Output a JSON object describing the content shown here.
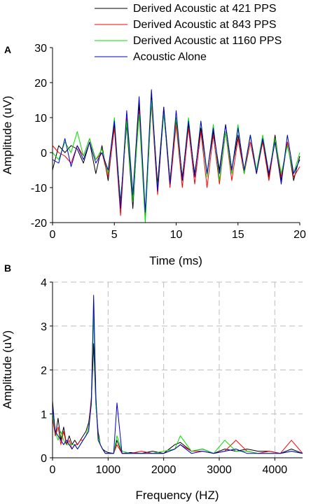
{
  "chart_data": [
    {
      "panel_label": "A",
      "type": "line",
      "title": "",
      "xlabel": "Time (ms)",
      "ylabel": "Amplitude (uV)",
      "xlim": [
        0,
        20
      ],
      "ylim": [
        -20,
        30
      ],
      "xticks": [
        "0",
        "5",
        "10",
        "15",
        "20"
      ],
      "yticks": [
        "-20",
        "-10",
        "0",
        "10",
        "20",
        "30"
      ],
      "grid": false,
      "legend_position": "top-right",
      "series": [
        {
          "name": "Derived Acoustic at 421 PPS",
          "color": "#000000",
          "x": [
            0,
            0.5,
            1,
            1.5,
            2,
            2.5,
            3,
            3.5,
            4,
            4.5,
            5,
            5.5,
            6,
            6.5,
            7,
            7.5,
            8,
            8.5,
            9,
            9.5,
            10,
            10.5,
            11,
            11.5,
            12,
            12.5,
            13,
            13.5,
            14,
            14.5,
            15,
            15.5,
            16,
            16.5,
            17,
            17.5,
            18,
            18.5,
            19,
            19.5,
            20
          ],
          "y": [
            -5,
            2,
            0,
            2,
            1,
            -3,
            3,
            -6,
            2,
            -8,
            8,
            -14,
            8,
            -16,
            14,
            -19,
            16,
            -9,
            13,
            -8,
            9,
            -7,
            8,
            -6,
            7,
            -6,
            6,
            -5,
            8,
            -5,
            5,
            -6,
            5,
            -6,
            4,
            -7,
            5,
            -8,
            3,
            -8,
            -1
          ]
        },
        {
          "name": "Derived Acoustic at 843 PPS",
          "color": "#ff0000",
          "x": [
            0,
            0.5,
            1,
            1.5,
            2,
            2.5,
            3,
            3.5,
            4,
            4.5,
            5,
            5.5,
            6,
            6.5,
            7,
            7.5,
            8,
            8.5,
            9,
            9.5,
            10,
            10.5,
            11,
            11.5,
            12,
            12.5,
            13,
            13.5,
            14,
            14.5,
            15,
            15.5,
            16,
            16.5,
            17,
            17.5,
            18,
            18.5,
            19,
            19.5,
            20
          ],
          "y": [
            2,
            0,
            -1,
            -3,
            2,
            -1,
            4,
            -2,
            0,
            -7,
            7,
            -18,
            10,
            -13,
            12,
            -18,
            14,
            -12,
            12,
            -10,
            8,
            -10,
            7,
            -9,
            6,
            -10,
            5,
            -9,
            6,
            -8,
            4,
            -6,
            3,
            -6,
            3,
            -8,
            4,
            -7,
            3,
            -7,
            -4
          ]
        },
        {
          "name": "Derived Acoustic at 1160 PPS",
          "color": "#00e000",
          "x": [
            0,
            0.5,
            1,
            1.5,
            2,
            2.5,
            3,
            3.5,
            4,
            4.5,
            5,
            5.5,
            6,
            6.5,
            7,
            7.5,
            8,
            8.5,
            9,
            9.5,
            10,
            10.5,
            11,
            11.5,
            12,
            12.5,
            13,
            13.5,
            14,
            14.5,
            15,
            15.5,
            16,
            16.5,
            17,
            17.5,
            18,
            18.5,
            19,
            19.5,
            20
          ],
          "y": [
            0,
            -2,
            3,
            0,
            6,
            -1,
            4,
            -2,
            1,
            -6,
            10,
            -15,
            9,
            -14,
            11,
            -20,
            15,
            -10,
            11,
            -8,
            10,
            -8,
            10,
            -7,
            9,
            -7,
            8,
            -8,
            6,
            -6,
            8,
            -6,
            5,
            -5,
            5,
            -6,
            4,
            -6,
            2,
            -6,
            0
          ]
        },
        {
          "name": "Acoustic Alone",
          "color": "#0000cc",
          "x": [
            0,
            0.5,
            1,
            1.5,
            2,
            2.5,
            3,
            3.5,
            4,
            4.5,
            5,
            5.5,
            6,
            6.5,
            7,
            7.5,
            8,
            8.5,
            9,
            9.5,
            10,
            10.5,
            11,
            11.5,
            12,
            12.5,
            13,
            13.5,
            14,
            14.5,
            15,
            15.5,
            16,
            16.5,
            17,
            17.5,
            18,
            18.5,
            19,
            19.5,
            20
          ],
          "y": [
            -2,
            -3,
            4,
            -4,
            2,
            -2,
            3,
            -3,
            0,
            -5,
            9,
            -16,
            12,
            -12,
            16,
            -17,
            18,
            -11,
            13,
            -9,
            12,
            -8,
            9,
            -7,
            9,
            -6,
            7,
            -6,
            8,
            -5,
            7,
            -5,
            5,
            -6,
            4,
            -6,
            3,
            -9,
            5,
            -6,
            -2
          ]
        }
      ]
    },
    {
      "panel_label": "B",
      "type": "line",
      "title": "",
      "xlabel": "Frequency (HZ)",
      "ylabel": "Amplitude (uV)",
      "xlim": [
        0,
        4500
      ],
      "ylim": [
        0,
        4
      ],
      "xticks": [
        "0",
        "1000",
        "2000",
        "3000",
        "4000"
      ],
      "yticks": [
        "0",
        "1",
        "2",
        "3",
        "4"
      ],
      "grid": true,
      "grid_style": "dashed",
      "series": [
        {
          "name": "Derived Acoustic at 421 PPS",
          "color": "#000000",
          "x": [
            0,
            50,
            100,
            150,
            200,
            250,
            300,
            350,
            400,
            450,
            500,
            550,
            600,
            650,
            700,
            740,
            780,
            820,
            860,
            900,
            950,
            1000,
            1100,
            1160,
            1250,
            1400,
            1600,
            1800,
            2000,
            2200,
            2300,
            2500,
            2700,
            2900,
            3100,
            3300,
            3500,
            3700,
            3900,
            4100,
            4300,
            4500
          ],
          "y": [
            1.3,
            0.5,
            0.9,
            0.4,
            0.7,
            0.3,
            0.5,
            0.3,
            0.4,
            0.3,
            0.4,
            0.5,
            0.6,
            0.8,
            1.3,
            2.6,
            1.2,
            0.6,
            0.3,
            0.2,
            0.15,
            0.12,
            0.1,
            0.4,
            0.1,
            0.12,
            0.1,
            0.15,
            0.1,
            0.3,
            0.35,
            0.15,
            0.2,
            0.1,
            0.2,
            0.15,
            0.2,
            0.15,
            0.15,
            0.1,
            0.2,
            0.1
          ]
        },
        {
          "name": "Derived Acoustic at 843 PPS",
          "color": "#ff0000",
          "x": [
            0,
            50,
            100,
            150,
            200,
            250,
            300,
            350,
            400,
            450,
            500,
            550,
            600,
            650,
            700,
            740,
            780,
            820,
            860,
            900,
            950,
            1000,
            1100,
            1160,
            1250,
            1400,
            1600,
            1800,
            2000,
            2200,
            2300,
            2500,
            2700,
            2900,
            3100,
            3300,
            3500,
            3700,
            3900,
            4100,
            4300,
            4500
          ],
          "y": [
            0.9,
            0.5,
            0.7,
            0.3,
            0.6,
            0.3,
            0.4,
            0.2,
            0.3,
            0.3,
            0.4,
            0.4,
            0.5,
            0.7,
            1.4,
            3.4,
            1.3,
            0.5,
            0.3,
            0.2,
            0.1,
            0.1,
            0.1,
            0.3,
            0.1,
            0.1,
            0.15,
            0.1,
            0.1,
            0.2,
            0.3,
            0.15,
            0.15,
            0.1,
            0.15,
            0.4,
            0.15,
            0.1,
            0.15,
            0.1,
            0.4,
            0.1
          ]
        },
        {
          "name": "Derived Acoustic at 1160 PPS",
          "color": "#00e000",
          "x": [
            0,
            50,
            100,
            150,
            200,
            250,
            300,
            350,
            400,
            450,
            500,
            550,
            600,
            650,
            700,
            740,
            780,
            820,
            860,
            900,
            950,
            1000,
            1100,
            1160,
            1250,
            1400,
            1600,
            1800,
            2000,
            2200,
            2300,
            2500,
            2700,
            2900,
            3100,
            3300,
            3500,
            3700,
            3900,
            4100,
            4300,
            4500
          ],
          "y": [
            1.0,
            0.6,
            0.4,
            0.6,
            0.4,
            0.3,
            0.3,
            0.3,
            0.3,
            0.2,
            0.3,
            0.4,
            0.5,
            0.7,
            1.2,
            3.3,
            1.2,
            0.5,
            0.3,
            0.2,
            0.1,
            0.1,
            0.1,
            0.5,
            0.15,
            0.1,
            0.1,
            0.1,
            0.15,
            0.2,
            0.5,
            0.15,
            0.2,
            0.1,
            0.4,
            0.15,
            0.15,
            0.1,
            0.1,
            0.1,
            0.15,
            0.1
          ]
        },
        {
          "name": "Acoustic Alone",
          "color": "#0000cc",
          "x": [
            0,
            50,
            100,
            150,
            200,
            250,
            300,
            350,
            400,
            450,
            500,
            550,
            600,
            650,
            700,
            740,
            780,
            820,
            860,
            900,
            950,
            1000,
            1100,
            1160,
            1250,
            1400,
            1600,
            1800,
            2000,
            2200,
            2300,
            2500,
            2700,
            2900,
            3100,
            3300,
            3500,
            3700,
            3900,
            4100,
            4300,
            4500
          ],
          "y": [
            1.2,
            0.6,
            0.5,
            0.4,
            0.3,
            0.4,
            0.3,
            0.2,
            0.3,
            0.2,
            0.3,
            0.4,
            0.5,
            0.6,
            1.3,
            3.7,
            1.4,
            0.4,
            0.3,
            0.2,
            0.1,
            0.1,
            0.1,
            1.25,
            0.1,
            0.1,
            0.1,
            0.1,
            0.1,
            0.2,
            0.3,
            0.1,
            0.15,
            0.1,
            0.15,
            0.2,
            0.1,
            0.1,
            0.1,
            0.1,
            0.15,
            0.1
          ]
        }
      ]
    }
  ]
}
